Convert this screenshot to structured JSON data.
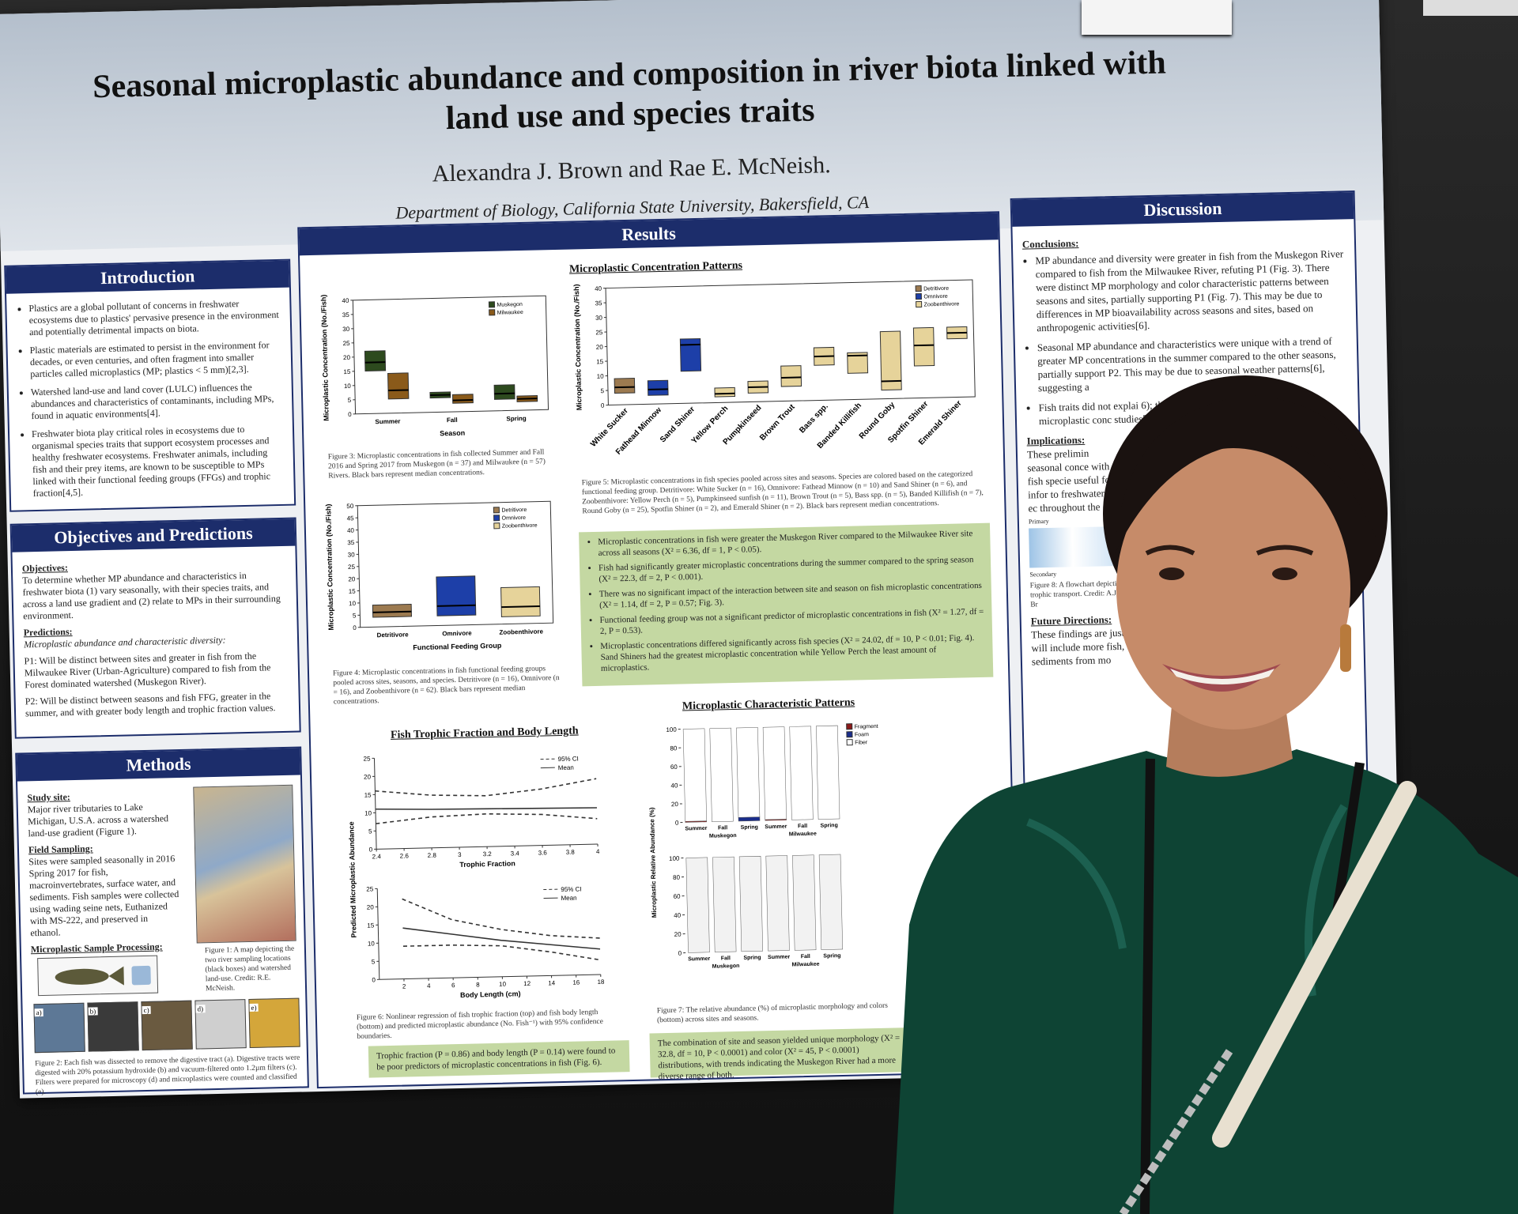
{
  "poster": {
    "title": "Seasonal microplastic abundance and composition in river biota linked with land use and species traits",
    "authors": "Alexandra J. Brown and Rae E. McNeish.",
    "affiliation": "Department of Biology, California State University, Bakersfield, CA"
  },
  "introduction": {
    "heading": "Introduction",
    "bullets": [
      "Plastics are a global pollutant of concerns in freshwater ecosystems due to plastics' pervasive presence in the environment and potentially detrimental impacts on biota.",
      "Plastic materials are estimated to persist in the environment for decades, or even centuries, and often fragment into smaller particles called microplastics (MP; plastics < 5 mm)[2,3].",
      "Watershed land-use and land cover (LULC) influences the abundances and characteristics of contaminants, including MPs, found in aquatic environments[4].",
      "Freshwater biota play critical roles in ecosystems due to organismal species traits that support ecosystem processes and healthy freshwater ecosystems. Freshwater animals, including fish and their prey items, are known to be susceptible to MPs linked with their functional feeding groups (FFGs) and trophic fraction[4,5]."
    ]
  },
  "objectives": {
    "heading": "Objectives and Predictions",
    "objectives_label": "Objectives:",
    "objectives_text": "To determine whether MP abundance and characteristics in freshwater biota (1) vary seasonally, with their species traits, and across a land use gradient and (2) relate to MPs in their surrounding environment.",
    "predictions_label": "Predictions:",
    "predictions_intro": "Microplastic abundance and characteristic diversity:",
    "predictions": [
      "P1: Will be distinct between sites and greater in fish from the Milwaukee River (Urban-Agriculture) compared to fish from the Forest dominated watershed (Muskegon River).",
      "P2: Will be distinct between seasons and fish FFG, greater in the summer, and with greater body length and trophic fraction values."
    ]
  },
  "methods": {
    "heading": "Methods",
    "site_label": "Study site:",
    "site_text": "Major river tributaries to Lake Michigan, U.S.A. across a watershed land-use gradient (Figure 1).",
    "field_label": "Field Sampling:",
    "field_text": "Sites were sampled seasonally in 2016 Spring 2017 for fish, macroinvertebrates, surface water, and sediments. Fish samples were collected using wading seine nets, Euthanized with MS-222, and preserved in ethanol.",
    "processing_label": "Microplastic Sample Processing:",
    "fig1_caption": "Figure 1: A map depicting the two river sampling locations (black boxes) and watershed land-use. Credit: R.E. McNeish.",
    "panels": [
      "a)",
      "b)",
      "c)",
      "d)",
      "e)"
    ],
    "fig2_caption": "Figure 2: Each fish was dissected to remove the digestive tract (a). Digestive tracts were digested with 20% potassium hydroxide (b) and vacuum-filtered onto 1.2µm filters (c). Filters were prepared for microscopy (d) and microplastics were counted and classified (e)."
  },
  "results": {
    "heading": "Results",
    "concentration_heading": "Microplastic Concentration Patterns",
    "fig3": {
      "ylabel": "Microplastic Concentration (No./Fish)",
      "xlabel": "Season",
      "categories": [
        "Summer",
        "Fall",
        "Spring"
      ],
      "ylim": [
        0,
        40
      ],
      "yticks": [
        0,
        5,
        10,
        15,
        20,
        25,
        30,
        35,
        40
      ],
      "series": [
        {
          "name": "Muskegon",
          "color": "#2d4a1e",
          "q1": [
            15,
            5,
            4
          ],
          "median": [
            18,
            6,
            6
          ],
          "q3": [
            22,
            7,
            9
          ]
        },
        {
          "name": "Milwaukee",
          "color": "#8a5a1a",
          "q1": [
            5,
            3,
            3
          ],
          "median": [
            8,
            4,
            4
          ],
          "q3": [
            14,
            6,
            5
          ]
        }
      ],
      "caption": "Figure 3: Microplastic concentrations in fish collected Summer and Fall 2016 and Spring 2017 from Muskegon (n = 37) and Milwaukee (n = 57) Rivers. Black bars represent median concentrations."
    },
    "fig5": {
      "ylabel": "Microplastic Concentration (No./Fish)",
      "categories": [
        "White Sucker",
        "Fathead Minnow",
        "Sand Shiner",
        "Yellow Perch",
        "Pumpkinseed",
        "Brown Trout",
        "Bass spp.",
        "Banded Killifish",
        "Round Goby",
        "Spotfin Shiner",
        "Emerald Shiner"
      ],
      "colors": [
        "#9c7a50",
        "#1d3fa8",
        "#1d3fa8",
        "#e6d39a",
        "#e6d39a",
        "#e6d39a",
        "#e6d39a",
        "#e6d39a",
        "#e6d39a",
        "#e6d39a",
        "#e6d39a"
      ],
      "ylim": [
        0,
        40
      ],
      "yticks": [
        0,
        5,
        10,
        15,
        20,
        25,
        30,
        35,
        40
      ],
      "q1": [
        4,
        3,
        11,
        2,
        3,
        5,
        12,
        9,
        3,
        11,
        20
      ],
      "median": [
        6,
        5,
        20,
        3,
        5,
        8,
        15,
        15,
        6,
        18,
        22
      ],
      "q3": [
        9,
        8,
        22,
        5,
        7,
        12,
        18,
        16,
        23,
        24,
        24
      ],
      "legend": [
        {
          "name": "Detritivore",
          "color": "#9c7a50"
        },
        {
          "name": "Omnivore",
          "color": "#1d3fa8"
        },
        {
          "name": "Zoobenthivore",
          "color": "#e6d39a"
        }
      ],
      "caption": "Figure 5: Microplastic concentrations in fish species pooled across sites and seasons. Species are colored based on the categorized functional feeding group. Detritivore: White Sucker (n = 16), Omnivore: Fathead Minnow (n = 10) and Sand Shiner (n = 6), and Zoobenthivore: Yellow Perch (n = 5), Pumpkinseed sunfish (n = 11), Brown Trout (n = 5), Bass spp. (n = 5), Banded Killifish (n = 7), Round Goby (n = 25), Spotfin Shiner (n = 2), and Emerald Shiner (n = 2). Black bars represent median concentrations."
    },
    "fig4": {
      "ylabel": "Microplastic Concentration (No./Fish)",
      "xlabel": "Functional Feeding Group",
      "categories": [
        "Detritivore",
        "Omnivore",
        "Zoobenthivore"
      ],
      "colors": [
        "#9c7a50",
        "#1d3fa8",
        "#e6d39a"
      ],
      "ylim": [
        0,
        50
      ],
      "yticks": [
        0,
        5,
        10,
        15,
        20,
        25,
        30,
        35,
        40,
        45,
        50
      ],
      "q1": [
        4,
        4,
        3
      ],
      "median": [
        6,
        8,
        7
      ],
      "q3": [
        9,
        20,
        15
      ],
      "caption": "Figure 4: Microplastic concentrations in fish functional feeding groups pooled across sites, seasons, and species. Detritivore (n = 16), Omnivore (n = 16), and Zoobenthivore (n = 62). Black bars represent median concentrations."
    },
    "findings": [
      "Microplastic concentrations in fish were greater the Muskegon River compared to the Milwaukee River site across all seasons (X² = 6.36, df = 1, P < 0.05).",
      "Fish had significantly greater microplastic concentrations during the summer compared to the spring season (X² = 22.3, df = 2, P < 0.001).",
      "There was no significant impact of the interaction between site and season on fish microplastic concentrations (X² = 1.14, df = 2, P = 0.57; Fig. 3).",
      "Functional feeding group was not a significant predictor of microplastic concentrations in fish (X² = 1.27, df = 2, P = 0.53).",
      "Microplastic concentrations differed significantly across fish species (X² = 24.02, df = 10, P < 0.01; Fig. 4). Sand Shiners had the greatest microplastic concentration while Yellow Perch the least amount of microplastics."
    ],
    "trophic_heading": "Fish Trophic Fraction and Body Length",
    "fig6": {
      "ylabel": "Predicted Microplastic Abundance",
      "top": {
        "xlabel": "Trophic Fraction",
        "xlim": [
          2.4,
          4.0
        ],
        "xticks": [
          2.4,
          2.6,
          2.8,
          3.0,
          3.2,
          3.4,
          3.6,
          3.8,
          4.0
        ],
        "ylim": [
          0,
          25
        ],
        "yticks": [
          0,
          5,
          10,
          15,
          20,
          25
        ],
        "x": [
          2.4,
          2.8,
          3.2,
          3.6,
          4.0
        ],
        "upper": [
          16,
          14.5,
          14,
          15.5,
          18
        ],
        "mean": [
          11,
          10.6,
          10.4,
          10.2,
          10
        ],
        "lower": [
          7,
          8.5,
          9,
          8.5,
          7
        ]
      },
      "bottom": {
        "xlabel": "Body Length (cm)",
        "xlim": [
          0,
          18
        ],
        "xticks": [
          2,
          4,
          6,
          8,
          10,
          12,
          14,
          16,
          18
        ],
        "ylim": [
          0,
          25
        ],
        "yticks": [
          0,
          5,
          10,
          15,
          20,
          25
        ],
        "x": [
          2,
          6,
          10,
          14,
          18
        ],
        "upper": [
          22,
          16,
          13,
          11,
          10
        ],
        "mean": [
          14,
          12,
          10,
          8.5,
          7
        ],
        "lower": [
          9,
          9,
          8.5,
          6.5,
          4
        ]
      },
      "legend": [
        "95% CI",
        "Mean"
      ],
      "caption": "Figure 6: Nonlinear regression of fish trophic fraction (top) and fish body length (bottom) and predicted microplastic abundance (No. Fish⁻¹) with 95% confidence boundaries."
    },
    "trophic_finding": "Trophic fraction (P = 0.86) and body length (P = 0.14) were found to be poor predictors of microplastic concentrations in fish (Fig. 6).",
    "characteristic_heading": "Microplastic Characteristic Patterns",
    "fig7": {
      "ylabel": "Microplastic Relative Abundance (%)",
      "categories": [
        "Summer",
        "Fall",
        "Spring",
        "Summer",
        "Fall",
        "Spring"
      ],
      "sites": [
        "Muskegon",
        "Milwaukee"
      ],
      "ylim": [
        0,
        100
      ],
      "yticks": [
        0,
        20,
        40,
        60,
        80,
        100
      ],
      "series": [
        {
          "name": "Fragment",
          "color": "#8b1a1a",
          "values": [
            1,
            0,
            0,
            1,
            0,
            0
          ]
        },
        {
          "name": "Foam",
          "color": "#1a2d8b",
          "values": [
            0,
            0,
            4,
            0,
            0,
            0
          ]
        },
        {
          "name": "Fiber",
          "color": "#ffffff",
          "values": [
            99,
            100,
            96,
            99,
            100,
            100
          ]
        }
      ],
      "caption": "Figure 7: The relative abundance (%) of microplastic morphology and colors (bottom) across sites and seasons."
    },
    "characteristic_finding": "The combination of site and season yielded unique morphology (X² = 32.8, df = 10, P < 0.0001) and color (X² = 45, P < 0.0001) distributions, with trends indicating the Muskegon River had a more diverse range of both."
  },
  "discussion": {
    "heading": "Discussion",
    "conclusions_label": "Conclusions:",
    "conclusions": [
      "MP abundance and diversity were greater in fish from the Muskegon River compared to fish from the Milwaukee River, refuting P1 (Fig. 3). There were distinct MP morphology and color characteristic patterns between seasons and sites, partially supporting P1 (Fig. 7). This may be due to differences in MP bioavailability across seasons and sites, based on anthropogenic activities[6].",
      "Seasonal MP abundance and characteristics were unique with a trend of greater MP concentrations in the summer compared to the other seasons, partially support P2. This may be due to seasonal weather patterns[6], suggesting a",
      "Fish traits did not explai 6); this may indicate development stage microplastic conc studies[8]."
    ],
    "implications_label": "Implications:",
    "implications": "These prelimin seasonal conce with fish specie useful for infor to freshwater ec throughout the",
    "fig8_labels": [
      "Primary",
      "Secondary"
    ],
    "fig8_caption": "Figure 8: A flowchart depicting trophic transport. Credit: A.J. Br",
    "future_label": "Future Directions:",
    "future": "These findings are just a sn will include more fish, sediments from mo"
  }
}
